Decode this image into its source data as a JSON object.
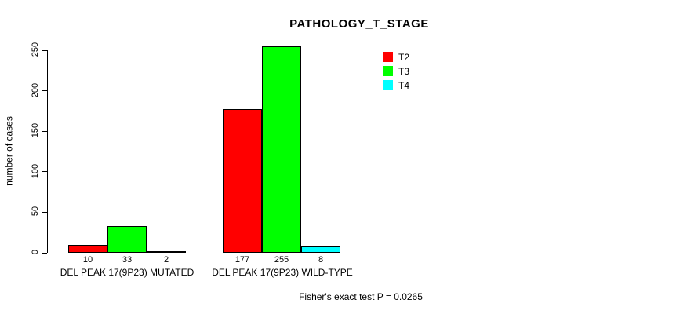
{
  "chart_data": {
    "type": "bar",
    "title": "PATHOLOGY_T_STAGE",
    "xlabel": "",
    "ylabel": "number of cases",
    "ylim": [
      0,
      250
    ],
    "yticks": [
      0,
      50,
      100,
      150,
      200,
      250
    ],
    "grid": false,
    "legend_position": "top-right",
    "categories": [
      "DEL PEAK 17(9P23) MUTATED",
      "DEL PEAK 17(9P23) WILD-TYPE"
    ],
    "series": [
      {
        "name": "T2",
        "color": "#ff0000",
        "values": [
          10,
          177
        ]
      },
      {
        "name": "T3",
        "color": "#00ff00",
        "values": [
          33,
          255
        ]
      },
      {
        "name": "T4",
        "color": "#00ffff",
        "values": [
          2,
          8
        ]
      }
    ],
    "bar_value_labels": [
      [
        10,
        33,
        2
      ],
      [
        177,
        255,
        8
      ]
    ],
    "annotation": "Fisher's exact test P = 0.0265"
  },
  "colors": {
    "bar_border": "#000000",
    "axis": "#000000",
    "background": "#ffffff"
  }
}
